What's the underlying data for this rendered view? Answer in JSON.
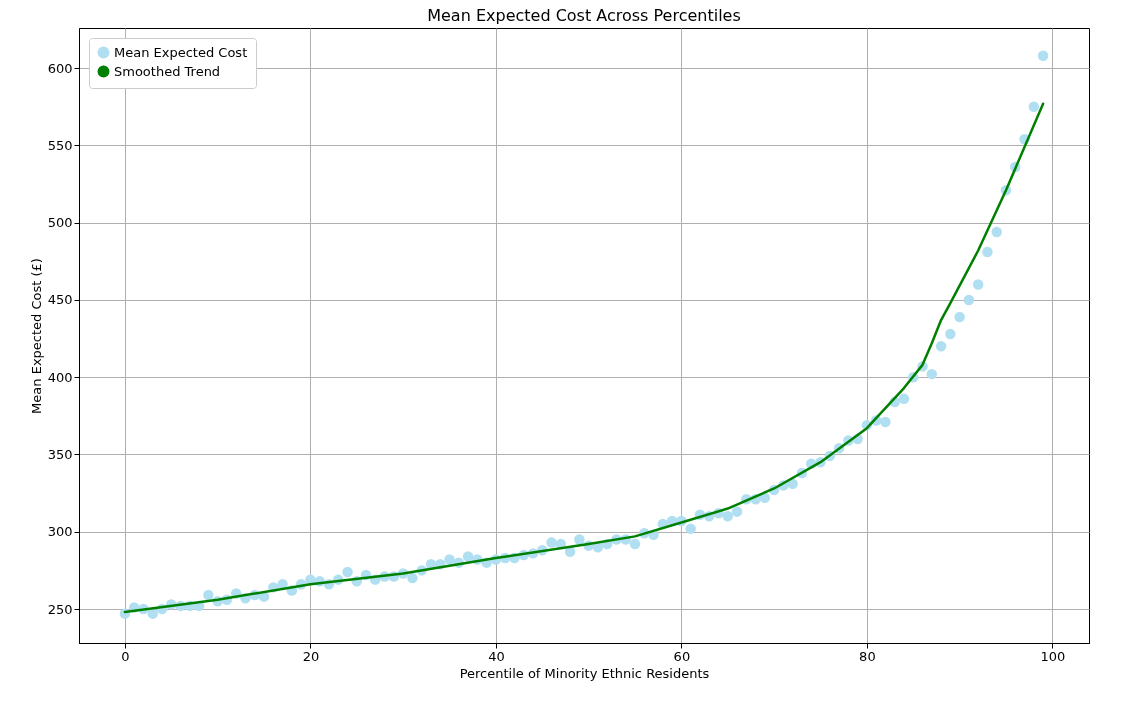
{
  "chart_data": {
    "type": "scatter",
    "title": "Mean Expected Cost Across Percentiles",
    "xlabel": "Percentile of Minority Ethnic Residents",
    "ylabel": "Mean Expected Cost (£)",
    "xlim": [
      -4.95,
      103.95
    ],
    "ylim": [
      228,
      626
    ],
    "xticks": [
      0,
      20,
      40,
      60,
      80,
      100
    ],
    "yticks": [
      250,
      300,
      350,
      400,
      450,
      500,
      550,
      600
    ],
    "grid": true,
    "legend": "top left",
    "marker": "circle",
    "series": [
      {
        "name": "Mean Expected Cost",
        "color": "#b0dff2",
        "x": [
          0,
          1,
          2,
          3,
          4,
          5,
          6,
          7,
          8,
          9,
          10,
          11,
          12,
          13,
          14,
          15,
          16,
          17,
          18,
          19,
          20,
          21,
          22,
          23,
          24,
          25,
          26,
          27,
          28,
          29,
          30,
          31,
          32,
          33,
          34,
          35,
          36,
          37,
          38,
          39,
          40,
          41,
          42,
          43,
          44,
          45,
          46,
          47,
          48,
          49,
          50,
          51,
          52,
          53,
          54,
          55,
          56,
          57,
          58,
          59,
          60,
          61,
          62,
          63,
          64,
          65,
          66,
          67,
          68,
          69,
          70,
          71,
          72,
          73,
          74,
          75,
          76,
          77,
          78,
          79,
          80,
          81,
          82,
          83,
          84,
          85,
          86,
          87,
          88,
          89,
          90,
          91,
          92,
          93,
          94,
          95,
          96,
          97,
          98,
          99
        ],
        "values": [
          247,
          251,
          250,
          247,
          250,
          253,
          252,
          252,
          252,
          259,
          255,
          256,
          260,
          257,
          259,
          258,
          264,
          266,
          262,
          266,
          269,
          268,
          266,
          269,
          274,
          268,
          272,
          269,
          271,
          271,
          273,
          270,
          275,
          279,
          279,
          282,
          280,
          284,
          282,
          280,
          282,
          283,
          283,
          285,
          286,
          288,
          293,
          292,
          287,
          295,
          291,
          290,
          292,
          295,
          295,
          292,
          299,
          298,
          305,
          307,
          307,
          302,
          311,
          310,
          312,
          310,
          313,
          321,
          321,
          322,
          327,
          330,
          331,
          338,
          344,
          345,
          349,
          354,
          359,
          360,
          369,
          372,
          371,
          384,
          386,
          400,
          407,
          402,
          420,
          428,
          439,
          450,
          460,
          481,
          494,
          521,
          536,
          554,
          575,
          608
        ]
      },
      {
        "name": "Smoothed Trend",
        "type": "line",
        "color": "#008000",
        "marker": "none",
        "line_style": "solid",
        "x": [
          0,
          10,
          20,
          30,
          40,
          50,
          55,
          60,
          65,
          70,
          75,
          80,
          84,
          86,
          87,
          88,
          89,
          92,
          95,
          99
        ],
        "values": [
          248,
          256,
          266,
          273,
          283,
          292,
          297,
          306,
          315,
          328,
          345,
          367,
          393,
          408,
          422,
          437,
          448,
          482,
          521,
          577
        ]
      }
    ]
  }
}
